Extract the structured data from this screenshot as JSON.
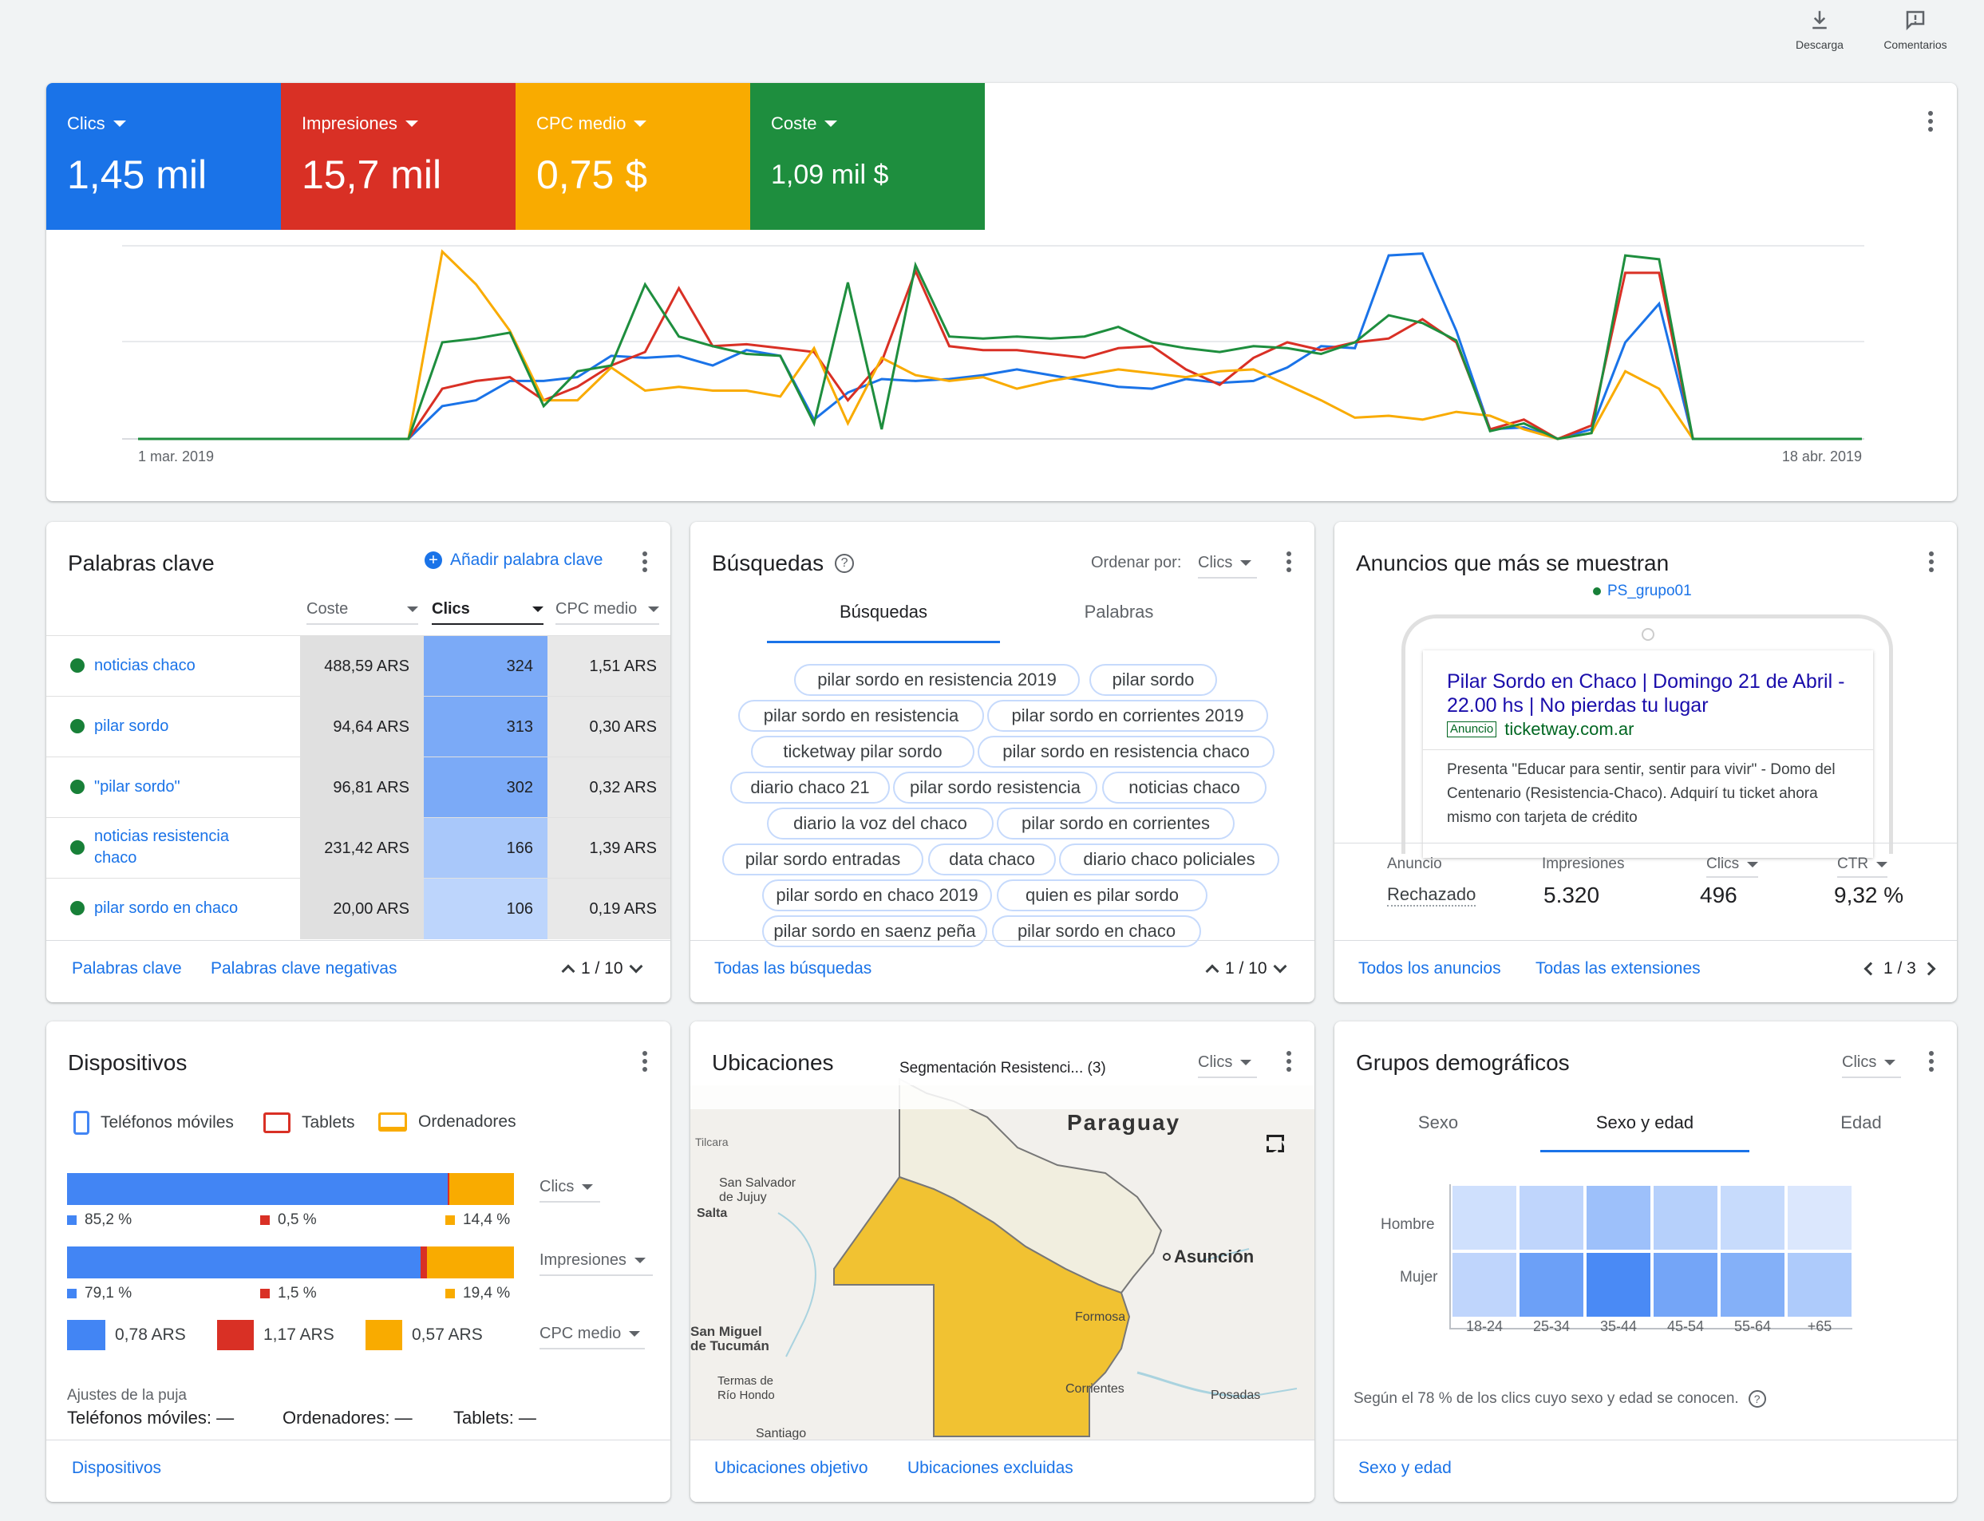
{
  "toolbar": {
    "download": "Descarga",
    "comments": "Comentarios"
  },
  "colors": {
    "blue": "#1a73e8",
    "red": "#d93025",
    "yellow": "#f9ab00",
    "green": "#1e8e3e"
  },
  "metrics": [
    {
      "label": "Clics",
      "value": "1,45 mil",
      "color": "#1a73e8"
    },
    {
      "label": "Impresiones",
      "value": "15,7 mil",
      "color": "#d93025"
    },
    {
      "label": "CPC medio",
      "value": "0,75 $",
      "color": "#f9ab00"
    },
    {
      "label": "Coste",
      "value": "1,09 mil $",
      "color": "#1e8e3e"
    }
  ],
  "chart_data": {
    "type": "line",
    "x_start_label": "1 mar. 2019",
    "x_end_label": "18 abr. 2019",
    "grid": true,
    "series": [
      {
        "name": "Clics",
        "color": "#1a73e8",
        "values": [
          0,
          0,
          0,
          0,
          0,
          0,
          0,
          0,
          0,
          0.17,
          0.2,
          0.3,
          0.3,
          0.32,
          0.43,
          0.42,
          0.43,
          0.38,
          0.46,
          0.43,
          0.1,
          0.24,
          0.31,
          0.3,
          0.31,
          0.33,
          0.36,
          0.33,
          0.3,
          0.27,
          0.26,
          0.31,
          0.29,
          0.3,
          0.37,
          0.48,
          0.47,
          0.95,
          0.96,
          0.56,
          0.05,
          0.06,
          0,
          0.05,
          0.5,
          0.7,
          0,
          0,
          0,
          0,
          0,
          0
        ]
      },
      {
        "name": "Impresiones",
        "color": "#d93025",
        "values": [
          0,
          0,
          0,
          0,
          0,
          0,
          0,
          0,
          0,
          0.26,
          0.3,
          0.32,
          0.2,
          0.27,
          0.38,
          0.45,
          0.78,
          0.48,
          0.49,
          0.47,
          0.45,
          0.2,
          0.4,
          0.87,
          0.48,
          0.46,
          0.46,
          0.44,
          0.42,
          0.47,
          0.48,
          0.36,
          0.28,
          0.42,
          0.5,
          0.46,
          0.5,
          0.52,
          0.62,
          0.5,
          0.05,
          0.1,
          0,
          0.07,
          0.86,
          0.86,
          0,
          0,
          0,
          0,
          0,
          0
        ]
      },
      {
        "name": "CPC medio",
        "color": "#f9ab00",
        "values": [
          0,
          0,
          0,
          0,
          0,
          0,
          0,
          0,
          0,
          0.97,
          0.8,
          0.56,
          0.2,
          0.2,
          0.37,
          0.25,
          0.27,
          0.25,
          0.25,
          0.22,
          0.47,
          0.08,
          0.42,
          0.33,
          0.3,
          0.32,
          0.26,
          0.3,
          0.33,
          0.36,
          0.34,
          0.32,
          0.35,
          0.36,
          0.28,
          0.2,
          0.11,
          0.12,
          0.1,
          0.14,
          0.12,
          0.05,
          0,
          0.03,
          0.35,
          0.26,
          0,
          0,
          0,
          0,
          0,
          0
        ]
      },
      {
        "name": "Coste",
        "color": "#1e8e3e",
        "values": [
          0,
          0,
          0,
          0,
          0,
          0,
          0,
          0,
          0,
          0.5,
          0.52,
          0.55,
          0.17,
          0.35,
          0.38,
          0.8,
          0.53,
          0.48,
          0.44,
          0.43,
          0.08,
          0.81,
          0.05,
          0.9,
          0.53,
          0.52,
          0.53,
          0.52,
          0.53,
          0.58,
          0.5,
          0.47,
          0.45,
          0.48,
          0.47,
          0.44,
          0.5,
          0.64,
          0.6,
          0.51,
          0.04,
          0.08,
          0,
          0.03,
          0.95,
          0.93,
          0,
          0,
          0,
          0,
          0,
          0
        ]
      }
    ]
  },
  "keywords": {
    "title": "Palabras clave",
    "add": "Añadir palabra clave",
    "cols": {
      "coste": "Coste",
      "clics": "Clics",
      "cpc": "CPC medio"
    },
    "rows": [
      {
        "name": "noticias chaco",
        "coste": "488,59 ARS",
        "clics": "324",
        "cpc": "1,51 ARS",
        "shade": "#7baaf7"
      },
      {
        "name": "pilar sordo",
        "coste": "94,64 ARS",
        "clics": "313",
        "cpc": "0,30 ARS",
        "shade": "#7baaf7"
      },
      {
        "name": "\"pilar sordo\"",
        "coste": "96,81 ARS",
        "clics": "302",
        "cpc": "0,32 ARS",
        "shade": "#7baaf7"
      },
      {
        "name": "noticias resistencia chaco",
        "coste": "231,42 ARS",
        "clics": "166",
        "cpc": "1,39 ARS",
        "shade": "#a9c8fa"
      },
      {
        "name": "pilar sordo en chaco",
        "coste": "20,00 ARS",
        "clics": "106",
        "cpc": "0,19 ARS",
        "shade": "#bdd5fc"
      }
    ],
    "footer": {
      "link1": "Palabras clave",
      "link2": "Palabras clave negativas",
      "pager": "1 / 10"
    }
  },
  "searches": {
    "title": "Búsquedas",
    "order_label": "Ordenar por:",
    "order_value": "Clics",
    "tabs": [
      "Búsquedas",
      "Palabras"
    ],
    "chips": [
      "pilar sordo en resistencia 2019",
      "pilar sordo",
      "pilar sordo en resistencia",
      "pilar sordo en corrientes 2019",
      "ticketway pilar sordo",
      "pilar sordo en resistencia chaco",
      "diario chaco 21",
      "pilar sordo resistencia",
      "noticias chaco",
      "diario la voz del chaco",
      "pilar sordo en corrientes",
      "pilar sordo entradas",
      "data chaco",
      "diario chaco policiales",
      "pilar sordo en chaco 2019",
      "quien es pilar sordo",
      "pilar sordo en saenz peña",
      "pilar sordo en chaco"
    ],
    "footer": {
      "link": "Todas las búsquedas",
      "pager": "1 / 10"
    }
  },
  "ads": {
    "title": "Anuncios que más se muestran",
    "group": "PS_grupo01",
    "headline": "Pilar Sordo en Chaco | Domingo 21 de Abril - 22.00 hs | No pierdas tu lugar",
    "badge": "Anuncio",
    "url": "ticketway.com.ar",
    "desc": "Presenta \"Educar para sentir, sentir para vivir\" - Domo del Centenario (Resistencia-Chaco). Adquirí tu ticket ahora mismo con tarjeta de crédito",
    "stats": {
      "h_ad": "Anuncio",
      "h_impr": "Impresiones",
      "h_clics": "Clics",
      "h_ctr": "CTR",
      "ad": "Rechazado",
      "impr": "5.320",
      "clics": "496",
      "ctr": "9,32 %"
    },
    "footer": {
      "link1": "Todos los anuncios",
      "link2": "Todas las extensiones",
      "pager": "1 / 3"
    }
  },
  "devices": {
    "title": "Dispositivos",
    "legend": [
      "Teléfonos móviles",
      "Tablets",
      "Ordenadores"
    ],
    "bar1": {
      "metric": "Clics",
      "mobile": 85.2,
      "tablet": 0.5,
      "desktop": 14.4,
      "l_mobile": "85,2 %",
      "l_tablet": "0,5 %",
      "l_desktop": "14,4 %"
    },
    "bar2": {
      "metric": "Impresiones",
      "mobile": 79.1,
      "tablet": 1.5,
      "desktop": 19.4,
      "l_mobile": "79,1 %",
      "l_tablet": "1,5 %",
      "l_desktop": "19,4 %"
    },
    "cpc": {
      "metric": "CPC medio",
      "mobile": "0,78 ARS",
      "tablet": "1,17 ARS",
      "desktop": "0,57 ARS"
    },
    "bid_title": "Ajustes de la puja",
    "bids": [
      "Teléfonos móviles: —",
      "Ordenadores: —",
      "Tablets: —"
    ],
    "footer": {
      "link": "Dispositivos"
    }
  },
  "locations": {
    "title": "Ubicaciones",
    "segment": "Segmentación Resistenci... (3)",
    "metric": "Clics",
    "map": {
      "country": "Paraguay",
      "capital": "Asunción",
      "cities": [
        "Formosa",
        "Corrientes",
        "Posadas",
        "Salta",
        "San Salvador de Jujuy",
        "San Miguel de Tucumán",
        "Termas de Río Hondo",
        "Santiago",
        "Tilcara"
      ]
    },
    "footer": {
      "link1": "Ubicaciones objetivo",
      "link2": "Ubicaciones excluidas"
    }
  },
  "demo": {
    "title": "Grupos demográficos",
    "metric": "Clics",
    "tabs": [
      "Sexo",
      "Sexo y edad",
      "Edad"
    ],
    "rows": [
      "Hombre",
      "Mujer"
    ],
    "ages": [
      "18-24",
      "25-34",
      "35-44",
      "45-54",
      "55-64",
      "+65"
    ],
    "heat": [
      [
        0.15,
        0.25,
        0.45,
        0.3,
        0.2,
        0.08
      ],
      [
        0.25,
        0.75,
        0.95,
        0.7,
        0.6,
        0.35
      ]
    ],
    "note": "Según el 78 % de los clics cuyo sexo y edad se conocen.",
    "footer": {
      "link": "Sexo y edad"
    }
  }
}
